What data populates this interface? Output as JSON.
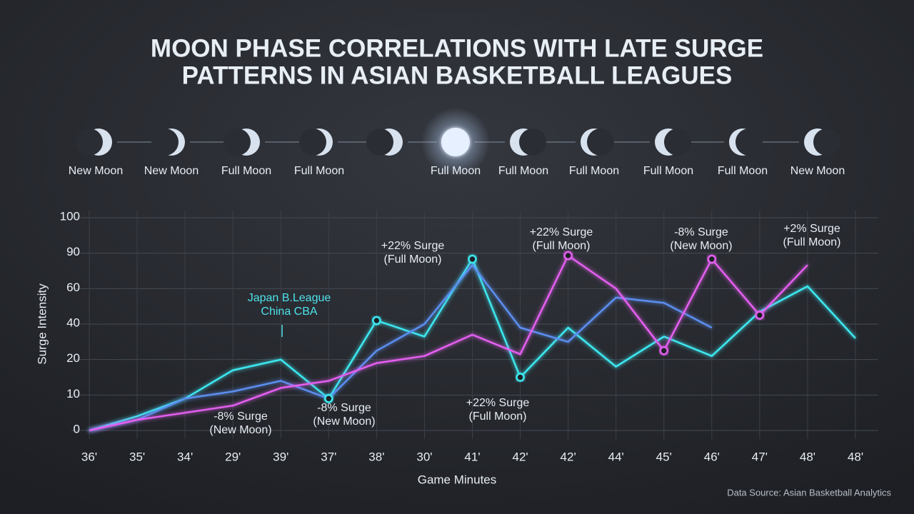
{
  "chart_data": {
    "type": "line",
    "title": [
      "MOON PHASE CORRELATIONS WITH LATE SURGE",
      "PATTERNS IN ASIAN BASKETBALL LEAGUES"
    ],
    "moon_phases": [
      "New Moon",
      "New Moon",
      "Full Moon",
      "Full Moon",
      null,
      "Full Moon",
      "Full Moon",
      "Full Moon",
      "Full Moon",
      "Full Moon",
      "New Moon"
    ],
    "y_label": "Surge Intensity",
    "x_label": "Game Minutes",
    "source": "Data Source: Asian Basketball Analytics",
    "categories": [
      "36'",
      "35'",
      "34'",
      "29'",
      "39'",
      "37'",
      "38'",
      "30'",
      "41'",
      "42'",
      "42'",
      "44'",
      "45'",
      "46'",
      "47'",
      "48'",
      "48'"
    ],
    "ylim": [
      0,
      100
    ],
    "yticks": [
      0,
      10,
      20,
      40,
      60,
      90,
      100
    ],
    "grid": true,
    "series": [
      {
        "color": "#3ee8f0",
        "values": [
          0,
          4,
          9,
          17,
          20,
          9,
          42,
          33,
          85,
          15,
          38,
          18,
          33,
          22,
          47,
          62,
          32
        ]
      },
      {
        "color": "#5b8ef0",
        "values": [
          0,
          3,
          9,
          11,
          14,
          9,
          25,
          40,
          80,
          38,
          30,
          55,
          52,
          38,
          null,
          null,
          null
        ]
      },
      {
        "color": "#e45ff0",
        "values": [
          0,
          3,
          5,
          7,
          12,
          14,
          19,
          22,
          34,
          23,
          88,
          60,
          25,
          85,
          45,
          80,
          null
        ]
      }
    ],
    "annotations": [
      {
        "lines": [
          "Japan B.League",
          "China CBA"
        ],
        "color": "#4fe3ec"
      },
      {
        "lines": [
          "+22% Surge",
          "(Full Moon)"
        ],
        "color": "#e8eef5"
      },
      {
        "lines": [
          "+22% Surge",
          "(Full Moon)"
        ],
        "color": "#e8eef5"
      },
      {
        "lines": [
          "-8% Surge",
          "(New Moon)"
        ],
        "color": "#e8eef5"
      },
      {
        "lines": [
          "+2% Surge",
          "(Full Moon)"
        ],
        "color": "#e8eef5"
      },
      {
        "lines": [
          "-8% Surge",
          "(New Moon)"
        ],
        "color": "#e8eef5"
      },
      {
        "lines": [
          "-8% Surge",
          "(New Moon)"
        ],
        "color": "#e8eef5"
      },
      {
        "lines": [
          "+22% Surge",
          "(Full Moon)"
        ],
        "color": "#e8eef5"
      }
    ]
  }
}
